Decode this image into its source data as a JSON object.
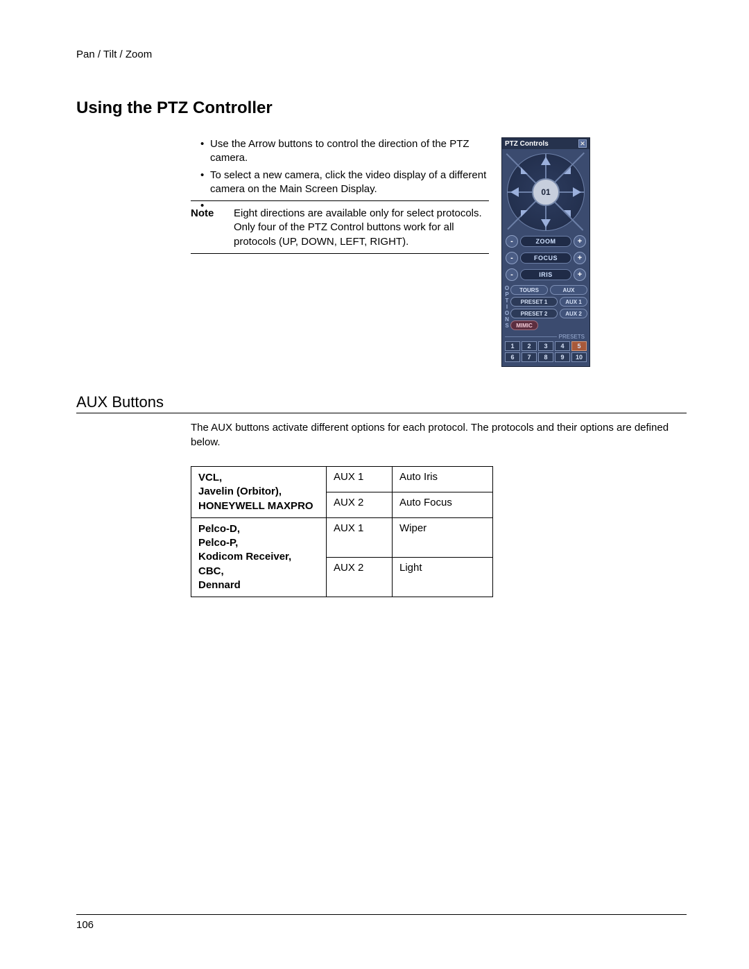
{
  "header": {
    "breadcrumb": "Pan / Tilt / Zoom"
  },
  "main_heading": "Using the PTZ Controller",
  "instructions": {
    "bullets": [
      "Use the Arrow buttons to control the direction of the PTZ camera.",
      "To select a new camera, click the video display of a different camera on the Main Screen Display.",
      ""
    ],
    "note_label": "Note",
    "note_text": "Eight directions are available only for select protocols. Only four of the PTZ Control buttons work for all protocols (UP, DOWN, LEFT, RIGHT)."
  },
  "ptz_panel": {
    "title": "PTZ Controls",
    "camera_number": "01",
    "colors": {
      "panel_bg": "#3b4b6f",
      "panel_border": "#1a2235",
      "title_bg": "#26324d",
      "ring_outer": "#1f2b47",
      "ring_border": "#6d80a8",
      "ring_inner_bg": "#c7cedd",
      "arrow_fill": "#9bb0dc",
      "pill_bg": "#1f2b47",
      "pm_btn_bg": "#4b5d85",
      "opt_btn_bg": "#41537a",
      "opt_pill_bg": "#2c3a58",
      "mimic_bg": "#5c2e3f",
      "preset_orange": "#a8593a",
      "text_light": "#cfe1ff"
    },
    "zf_controls": [
      {
        "label": "ZOOM",
        "minus": "-",
        "plus": "+"
      },
      {
        "label": "FOCUS",
        "minus": "-",
        "plus": "+"
      },
      {
        "label": "IRIS",
        "minus": "-",
        "plus": "+"
      }
    ],
    "options_label": "OPTIONS",
    "option_rows": [
      [
        {
          "text": "TOURS",
          "kind": "wide"
        },
        {
          "text": "AUX",
          "kind": "wide"
        }
      ],
      [
        {
          "text": "PRESET 1",
          "kind": "pill"
        },
        {
          "text": "AUX 1",
          "kind": "small"
        }
      ],
      [
        {
          "text": "PRESET 2",
          "kind": "pill"
        },
        {
          "text": "AUX 2",
          "kind": "small"
        }
      ]
    ],
    "mimic_label": "MIMIC",
    "presets_label": "PRESETS",
    "preset_numbers_row1": [
      "1",
      "2",
      "3",
      "4",
      "5"
    ],
    "preset_numbers_row2": [
      "6",
      "7",
      "8",
      "9",
      "10"
    ],
    "preset_highlight_index_row1": 4
  },
  "aux_section": {
    "heading": "AUX Buttons",
    "intro": "The AUX buttons activate different options for each protocol. The protocols and their options are defined below.",
    "table": {
      "rows": [
        {
          "protocol_lines": [
            "VCL,",
            "Javelin (Orbitor),"
          ],
          "protocol_caps": "HONEYWELL MAXPRO",
          "entries": [
            {
              "aux": "AUX 1",
              "func": "Auto Iris"
            },
            {
              "aux": "AUX 2",
              "func": "Auto Focus"
            }
          ]
        },
        {
          "protocol_lines": [
            "Pelco-D,",
            "Pelco-P,",
            "Kodicom Receiver,",
            "CBC,",
            "Dennard"
          ],
          "protocol_caps": "",
          "entries": [
            {
              "aux": "AUX 1",
              "func": "Wiper"
            },
            {
              "aux": "AUX 2",
              "func": "Light"
            }
          ]
        }
      ]
    }
  },
  "page_number": "106"
}
